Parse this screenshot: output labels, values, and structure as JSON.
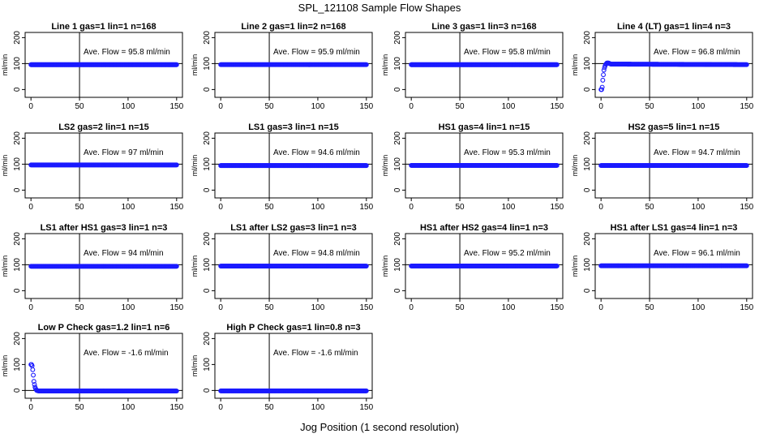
{
  "title": "SPL_121108  Sample Flow Shapes",
  "xlabel": "Jog Position (1 second resolution)",
  "chart_data": [
    {
      "type": "scatter",
      "title": "Line 1 gas=1 lin=1 n=168",
      "annotation": "Ave. Flow =  95.8  ml/min",
      "ylabel": "ml/min",
      "xlim": [
        0,
        150
      ],
      "ylim": [
        -30,
        220
      ],
      "xticks": [
        0,
        50,
        100,
        150
      ],
      "yticks": [
        0,
        100,
        200
      ],
      "vline": 50,
      "hline": 100,
      "profile": {
        "x": [
          0,
          150
        ],
        "y": [
          95.8,
          95.8
        ]
      }
    },
    {
      "type": "scatter",
      "title": "Line 2 gas=1 lin=2 n=168",
      "annotation": "Ave. Flow =  95.9  ml/min",
      "ylabel": "ml/min",
      "xlim": [
        0,
        150
      ],
      "ylim": [
        -30,
        220
      ],
      "xticks": [
        0,
        50,
        100,
        150
      ],
      "yticks": [
        0,
        100,
        200
      ],
      "vline": 50,
      "hline": 100,
      "profile": {
        "x": [
          0,
          150
        ],
        "y": [
          95.9,
          95.9
        ]
      }
    },
    {
      "type": "scatter",
      "title": "Line 3 gas=1 lin=3 n=168",
      "annotation": "Ave. Flow =  95.8  ml/min",
      "ylabel": "ml/min",
      "xlim": [
        0,
        150
      ],
      "ylim": [
        -30,
        220
      ],
      "xticks": [
        0,
        50,
        100,
        150
      ],
      "yticks": [
        0,
        100,
        200
      ],
      "vline": 50,
      "hline": 100,
      "profile": {
        "x": [
          0,
          150
        ],
        "y": [
          95.8,
          95.8
        ]
      }
    },
    {
      "type": "scatter",
      "title": "Line 4 (LT) gas=1 lin=4 n=3",
      "annotation": "Ave. Flow =  96.8  ml/min",
      "ylabel": "ml/min",
      "xlim": [
        0,
        150
      ],
      "ylim": [
        -30,
        220
      ],
      "xticks": [
        0,
        50,
        100,
        150
      ],
      "yticks": [
        0,
        100,
        200
      ],
      "vline": 50,
      "hline": 100,
      "profile": {
        "x": [
          1,
          2,
          3,
          4,
          5,
          6,
          8,
          10,
          150
        ],
        "y": [
          0,
          45,
          75,
          90,
          98,
          102,
          102,
          98,
          96
        ]
      }
    },
    {
      "type": "scatter",
      "title": "LS2 gas=2 lin=1 n=15",
      "annotation": "Ave. Flow =  97  ml/min",
      "ylabel": "ml/min",
      "xlim": [
        0,
        150
      ],
      "ylim": [
        -30,
        220
      ],
      "xticks": [
        0,
        50,
        100,
        150
      ],
      "yticks": [
        0,
        100,
        200
      ],
      "vline": 50,
      "hline": 100,
      "profile": {
        "x": [
          0,
          150
        ],
        "y": [
          97,
          97
        ]
      }
    },
    {
      "type": "scatter",
      "title": "LS1 gas=3 lin=1 n=15",
      "annotation": "Ave. Flow =  94.6  ml/min",
      "ylabel": "ml/min",
      "xlim": [
        0,
        150
      ],
      "ylim": [
        -30,
        220
      ],
      "xticks": [
        0,
        50,
        100,
        150
      ],
      "yticks": [
        0,
        100,
        200
      ],
      "vline": 50,
      "hline": 100,
      "profile": {
        "x": [
          0,
          150
        ],
        "y": [
          94.6,
          94.6
        ]
      }
    },
    {
      "type": "scatter",
      "title": "HS1 gas=4 lin=1 n=15",
      "annotation": "Ave. Flow =  95.3  ml/min",
      "ylabel": "ml/min",
      "xlim": [
        0,
        150
      ],
      "ylim": [
        -30,
        220
      ],
      "xticks": [
        0,
        50,
        100,
        150
      ],
      "yticks": [
        0,
        100,
        200
      ],
      "vline": 50,
      "hline": 100,
      "profile": {
        "x": [
          0,
          150
        ],
        "y": [
          95.3,
          95.3
        ]
      }
    },
    {
      "type": "scatter",
      "title": "HS2 gas=5 lin=1 n=15",
      "annotation": "Ave. Flow =  94.7  ml/min",
      "ylabel": "ml/min",
      "xlim": [
        0,
        150
      ],
      "ylim": [
        -30,
        220
      ],
      "xticks": [
        0,
        50,
        100,
        150
      ],
      "yticks": [
        0,
        100,
        200
      ],
      "vline": 50,
      "hline": 100,
      "profile": {
        "x": [
          0,
          150
        ],
        "y": [
          94.7,
          94.7
        ]
      }
    },
    {
      "type": "scatter",
      "title": "LS1 after HS1 gas=3 lin=1 n=3",
      "annotation": "Ave. Flow =  94  ml/min",
      "ylabel": "ml/min",
      "xlim": [
        0,
        150
      ],
      "ylim": [
        -30,
        220
      ],
      "xticks": [
        0,
        50,
        100,
        150
      ],
      "yticks": [
        0,
        100,
        200
      ],
      "vline": 50,
      "hline": 100,
      "profile": {
        "x": [
          0,
          150
        ],
        "y": [
          94,
          94
        ]
      }
    },
    {
      "type": "scatter",
      "title": "LS1 after LS2 gas=3 lin=1 n=3",
      "annotation": "Ave. Flow =  94.8  ml/min",
      "ylabel": "ml/min",
      "xlim": [
        0,
        150
      ],
      "ylim": [
        -30,
        220
      ],
      "xticks": [
        0,
        50,
        100,
        150
      ],
      "yticks": [
        0,
        100,
        200
      ],
      "vline": 50,
      "hline": 100,
      "profile": {
        "x": [
          0,
          150
        ],
        "y": [
          94.8,
          94.8
        ]
      }
    },
    {
      "type": "scatter",
      "title": "HS1 after HS2 gas=4 lin=1 n=3",
      "annotation": "Ave. Flow =  95.2  ml/min",
      "ylabel": "ml/min",
      "xlim": [
        0,
        150
      ],
      "ylim": [
        -30,
        220
      ],
      "xticks": [
        0,
        50,
        100,
        150
      ],
      "yticks": [
        0,
        100,
        200
      ],
      "vline": 50,
      "hline": 100,
      "profile": {
        "x": [
          0,
          150
        ],
        "y": [
          95.2,
          95.2
        ]
      }
    },
    {
      "type": "scatter",
      "title": "HS1 after LS1 gas=4 lin=1 n=3",
      "annotation": "Ave. Flow =  96.1  ml/min",
      "ylabel": "ml/min",
      "xlim": [
        0,
        150
      ],
      "ylim": [
        -30,
        220
      ],
      "xticks": [
        0,
        50,
        100,
        150
      ],
      "yticks": [
        0,
        100,
        200
      ],
      "vline": 50,
      "hline": 100,
      "profile": {
        "x": [
          0,
          150
        ],
        "y": [
          96.1,
          96.1
        ]
      }
    },
    {
      "type": "scatter",
      "title": "Low P Check gas=1.2 lin=1 n=6",
      "annotation": "Ave. Flow =  -1.6  ml/min",
      "ylabel": "ml/min",
      "xlim": [
        0,
        150
      ],
      "ylim": [
        -30,
        220
      ],
      "xticks": [
        0,
        50,
        100,
        150
      ],
      "yticks": [
        0,
        100,
        200
      ],
      "vline": 50,
      "hline": 0,
      "profile": {
        "x": [
          1,
          2,
          3,
          4,
          5,
          6,
          8,
          150
        ],
        "y": [
          100,
          75,
          35,
          15,
          5,
          0,
          -2,
          -2
        ]
      }
    },
    {
      "type": "scatter",
      "title": "High P Check gas=1 lin=0.8 n=3",
      "annotation": "Ave. Flow =  -1.6  ml/min",
      "ylabel": "ml/min",
      "xlim": [
        0,
        150
      ],
      "ylim": [
        -30,
        220
      ],
      "xticks": [
        0,
        50,
        100,
        150
      ],
      "yticks": [
        0,
        100,
        200
      ],
      "vline": 50,
      "hline": 0,
      "profile": {
        "x": [
          0,
          150
        ],
        "y": [
          -1.6,
          -1.6
        ]
      }
    }
  ]
}
